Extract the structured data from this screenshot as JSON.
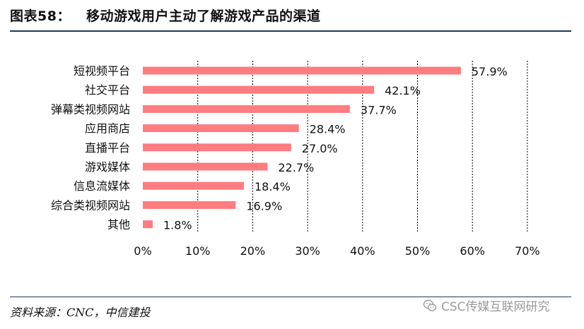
{
  "header": {
    "figure_label": "图表58：",
    "title": "移动游戏用户主动了解游戏产品的渠道"
  },
  "footer": {
    "source": "资料来源：CNC，中信建投",
    "watermark": "CSC传媒互联网研究",
    "watermark_icon": "wechat-icon"
  },
  "colors": {
    "bar": "#ff7c80",
    "rule": "#1f3a5a",
    "grid": "#000000"
  },
  "chart_data": {
    "type": "bar",
    "orientation": "horizontal",
    "title": "",
    "xlabel": "",
    "ylabel": "",
    "categories": [
      "短视频平台",
      "社交平台",
      "弹幕类视频网站",
      "应用商店",
      "直播平台",
      "游戏媒体",
      "信息流媒体",
      "综合类视频网站",
      "其他"
    ],
    "values": [
      57.9,
      42.1,
      37.7,
      28.4,
      27.0,
      22.7,
      18.4,
      16.9,
      1.8
    ],
    "value_labels": [
      "57.9%",
      "42.1%",
      "37.7%",
      "28.4%",
      "27.0%",
      "22.7%",
      "18.4%",
      "16.9%",
      "1.8%"
    ],
    "xlim": [
      0,
      70
    ],
    "xticks": [
      0,
      10,
      20,
      30,
      40,
      50,
      60,
      70
    ],
    "xtick_labels": [
      "0%",
      "10%",
      "20%",
      "30%",
      "40%",
      "50%",
      "60%",
      "70%"
    ],
    "grid": "vertical dashed",
    "legend": "none"
  }
}
